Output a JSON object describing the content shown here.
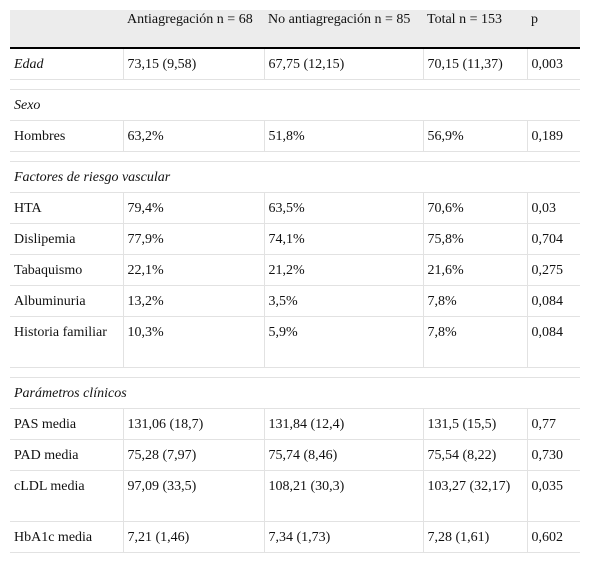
{
  "headers": [
    "",
    "Antiagregación n = 68",
    "No antiagregación n = 85",
    "Total n = 153",
    "p"
  ],
  "rows": [
    {
      "kind": "data-italic",
      "cells": [
        "Edad",
        "73,15 (9,58)",
        "67,75 (12,15)",
        "70,15 (11,37)",
        "0,003"
      ]
    },
    {
      "kind": "spacer"
    },
    {
      "kind": "section",
      "label": "Sexo"
    },
    {
      "kind": "data",
      "cells": [
        "Hombres",
        "63,2%",
        "51,8%",
        "56,9%",
        "0,189"
      ]
    },
    {
      "kind": "spacer"
    },
    {
      "kind": "section",
      "label": "Factores de riesgo vascular"
    },
    {
      "kind": "data",
      "cells": [
        "HTA",
        "79,4%",
        "63,5%",
        "70,6%",
        "0,03"
      ]
    },
    {
      "kind": "data",
      "cells": [
        "Dislipemia",
        "77,9%",
        "74,1%",
        "75,8%",
        "0,704"
      ]
    },
    {
      "kind": "data",
      "cells": [
        "Tabaquismo",
        "22,1%",
        "21,2%",
        "21,6%",
        "0,275"
      ]
    },
    {
      "kind": "data",
      "cells": [
        "Albuminuria",
        "13,2%",
        "3,5%",
        "7,8%",
        "0,084"
      ]
    },
    {
      "kind": "data-tall",
      "cells": [
        "Historia familiar",
        "10,3%",
        "5,9%",
        "7,8%",
        "0,084"
      ]
    },
    {
      "kind": "spacer"
    },
    {
      "kind": "section",
      "label": "Parámetros clínicos"
    },
    {
      "kind": "data",
      "cells": [
        "PAS media",
        "131,06 (18,7)",
        "131,84 (12,4)",
        "131,5 (15,5)",
        "0,77"
      ]
    },
    {
      "kind": "data",
      "cells": [
        "PAD media",
        "75,28 (7,97)",
        "75,74 (8,46)",
        "75,54 (8,22)",
        "0,730"
      ]
    },
    {
      "kind": "data-tall",
      "cells": [
        "cLDL media",
        "97,09 (33,5)",
        "108,21 (30,3)",
        "103,27 (32,17)",
        "0,035"
      ]
    },
    {
      "kind": "data",
      "cells": [
        "HbA1c media",
        "7,21 (1,46)",
        "7,34 (1,73)",
        "7,28 (1,61)",
        "0,602"
      ]
    }
  ]
}
